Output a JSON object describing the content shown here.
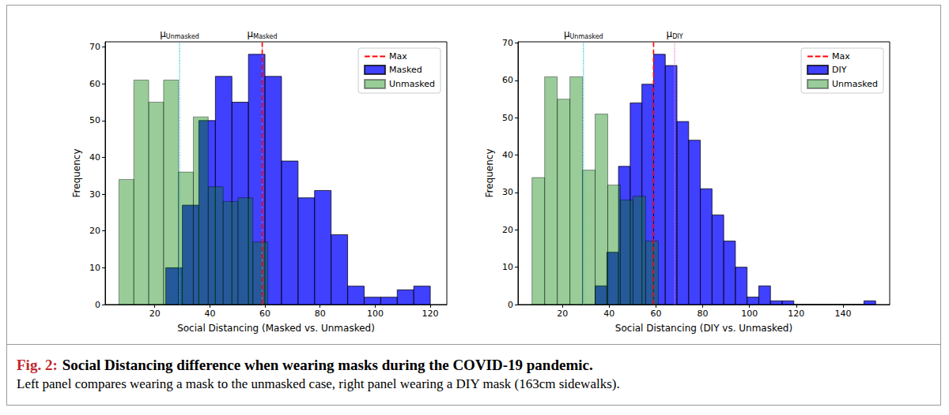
{
  "chart_data": [
    {
      "type": "histogram",
      "xlabel": "Social Distancing (Masked vs. Unmasked)",
      "ylabel": "Frequency",
      "xlim": [
        2,
        126
      ],
      "xticks": [
        20,
        40,
        60,
        80,
        100,
        120
      ],
      "ylim": [
        0,
        71.4
      ],
      "yticks": [
        0,
        10,
        20,
        30,
        40,
        50,
        60,
        70
      ],
      "legend": "upper right",
      "grid": false,
      "series": [
        {
          "name": "Masked",
          "color": "#0000ff",
          "bins": [
            24,
            30,
            36,
            42,
            48,
            54,
            60,
            66,
            72,
            78,
            84,
            90,
            96,
            102,
            108,
            114,
            120
          ],
          "values": [
            10,
            27,
            50,
            62,
            55,
            68,
            62,
            39,
            29,
            31,
            19,
            5,
            2,
            2,
            4,
            5
          ]
        },
        {
          "name": "Unmasked",
          "color": "#008000",
          "bins": [
            7,
            12.4,
            17.8,
            23.2,
            28.6,
            34,
            39.4,
            44.8,
            50.2,
            55.6,
            61
          ],
          "values": [
            34,
            61,
            55,
            61,
            36,
            51,
            32,
            28,
            29,
            17
          ]
        }
      ],
      "lines": [
        {
          "x": 29,
          "color": "#17becf",
          "line_style": "dotted",
          "text": "μ",
          "subscript": "Unmasked"
        },
        {
          "x": 59,
          "color": "#e377c2",
          "line_style": "dotted",
          "text": "μ",
          "subscript": "Masked"
        },
        {
          "name": "Max",
          "x": 59,
          "color": "#ff0000",
          "line_style": "dashed"
        }
      ]
    },
    {
      "type": "histogram",
      "xlabel": "Social Distancing (DIY vs. Unmasked)",
      "ylabel": "Frequency",
      "xlim": [
        1,
        160
      ],
      "xticks": [
        20,
        40,
        60,
        80,
        100,
        120,
        140
      ],
      "ylim": [
        0,
        70.35
      ],
      "yticks": [
        0,
        10,
        20,
        30,
        40,
        50,
        60,
        70
      ],
      "legend": "upper right",
      "grid": false,
      "series": [
        {
          "name": "DIY",
          "color": "#0000ff",
          "bins": [
            34,
            39,
            44,
            49,
            54,
            59,
            64,
            69,
            74,
            79,
            84,
            89,
            94,
            99,
            104,
            109,
            114,
            119,
            124,
            129,
            134,
            139,
            144,
            149,
            154
          ],
          "values": [
            5,
            14,
            37,
            54,
            59,
            67,
            64,
            49,
            44,
            31,
            24,
            17,
            10,
            2,
            5,
            1,
            1,
            0,
            0,
            0,
            0,
            0,
            0,
            1
          ]
        },
        {
          "name": "Unmasked",
          "color": "#008000",
          "bins": [
            7,
            12.4,
            17.8,
            23.2,
            28.6,
            34,
            39.4,
            44.8,
            50.2,
            55.6,
            61
          ],
          "values": [
            34,
            61,
            55,
            61,
            36,
            51,
            32,
            28,
            29,
            17
          ]
        }
      ],
      "lines": [
        {
          "x": 29,
          "color": "#17becf",
          "line_style": "dotted",
          "text": "μ",
          "subscript": "Unmasked"
        },
        {
          "x": 68,
          "color": "#e377c2",
          "line_style": "dotted",
          "text": "μ",
          "subscript": "DIY"
        },
        {
          "name": "Max",
          "x": 59,
          "color": "#ff0000",
          "line_style": "dashed"
        }
      ]
    }
  ],
  "caption": {
    "label": "Fig. 2:",
    "title": "Social Distancing difference when wearing masks during the COVID-19 pandemic.",
    "text": "Left panel compares wearing a mask to the unmasked case, right panel wearing a DIY mask (163cm sidewalks)."
  }
}
